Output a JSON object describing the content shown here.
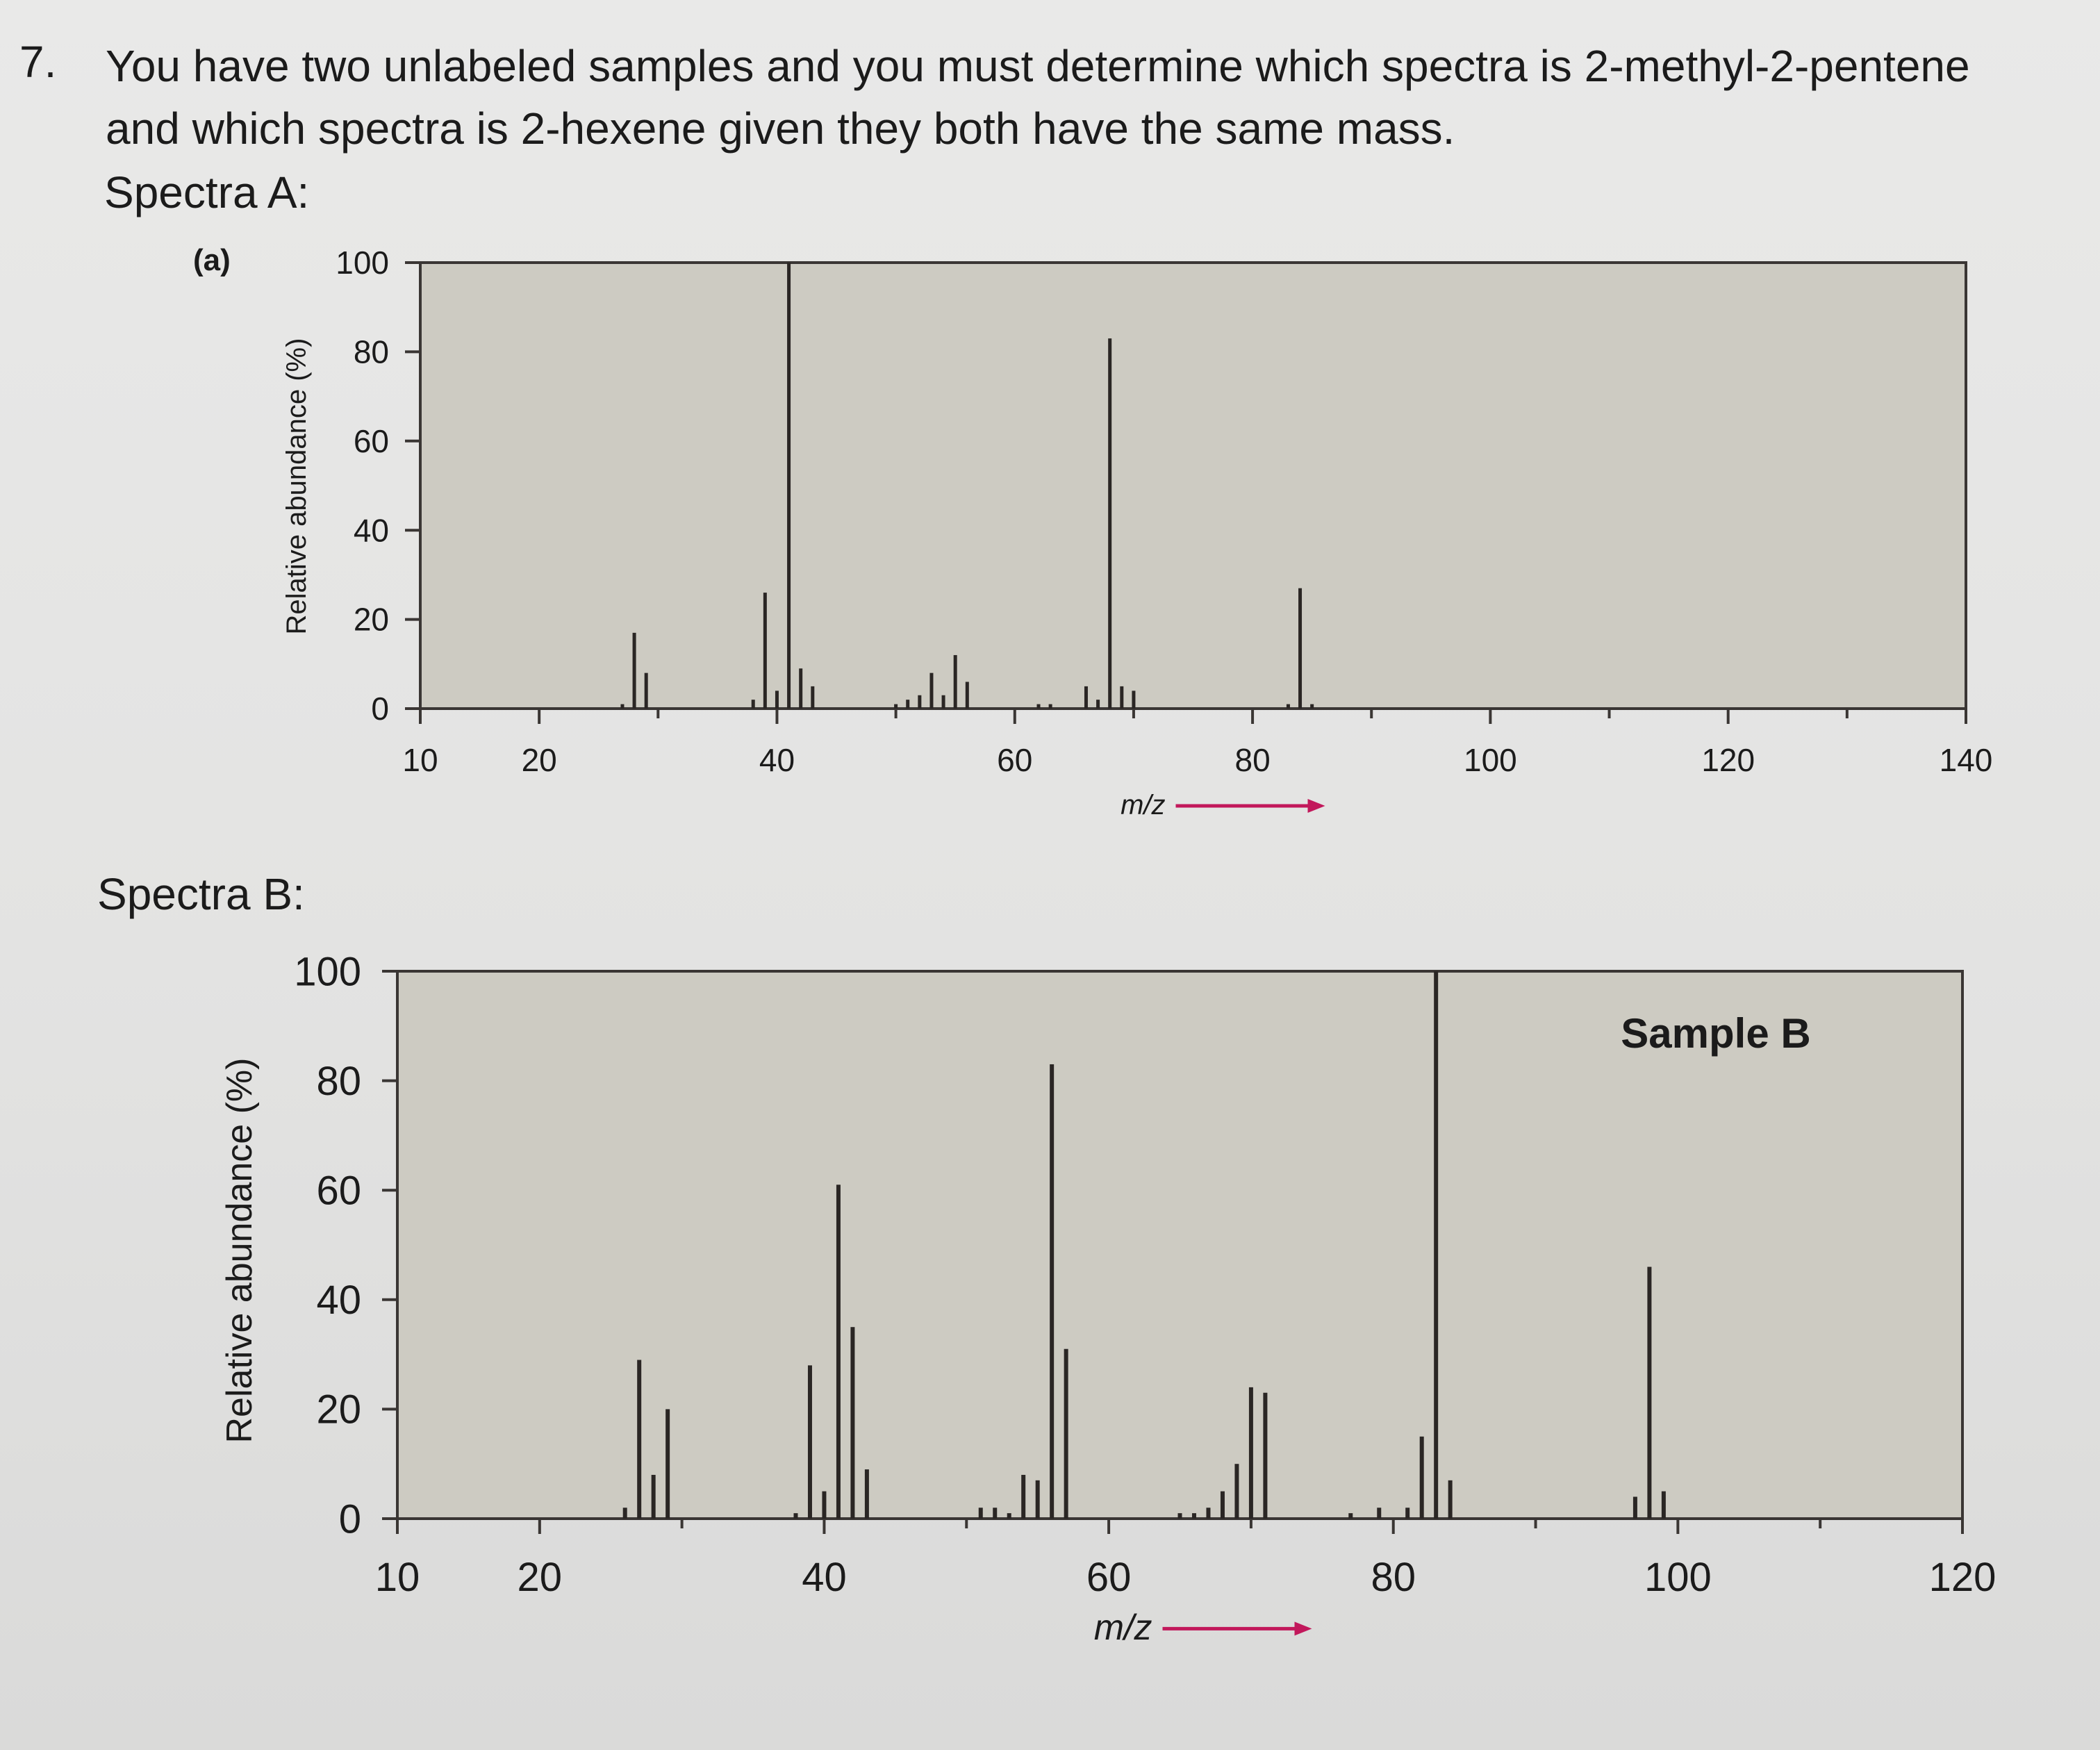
{
  "question": {
    "number": "7.",
    "text": "You have two unlabeled samples and you must determine which spectra is 2-methyl-2-pentene and which spectra is 2-hexene given they both have the same mass."
  },
  "spectra_a": {
    "title": "Spectra A:",
    "panel_label": "(a)"
  },
  "spectra_b": {
    "title": "Spectra B:"
  },
  "colors": {
    "plot_bg": "#cdcbc2",
    "bar": "#2a2624",
    "arrow": "#c2185b"
  },
  "chart_data": [
    {
      "type": "bar",
      "ylabel": "Relative abundance (%)",
      "xlabel": "m/z",
      "xlim": [
        10,
        140
      ],
      "ylim": [
        0,
        100
      ],
      "xticks": [
        10,
        20,
        40,
        60,
        80,
        100,
        120,
        140
      ],
      "yticks": [
        0,
        20,
        40,
        60,
        80,
        100
      ],
      "grid": false,
      "x": [
        27,
        28,
        29,
        38,
        39,
        40,
        41,
        42,
        43,
        50,
        51,
        52,
        53,
        54,
        55,
        56,
        62,
        63,
        66,
        67,
        68,
        69,
        70,
        83,
        84,
        85
      ],
      "values": [
        1,
        17,
        8,
        2,
        26,
        4,
        100,
        9,
        5,
        1,
        2,
        3,
        8,
        3,
        12,
        6,
        1,
        1,
        5,
        2,
        83,
        5,
        4,
        1,
        27,
        1
      ]
    },
    {
      "type": "bar",
      "label": "Sample B",
      "ylabel": "Relative abundance (%)",
      "xlabel": "m/z",
      "xlim": [
        10,
        120
      ],
      "ylim": [
        0,
        100
      ],
      "xticks": [
        10,
        20,
        40,
        60,
        80,
        100,
        120
      ],
      "yticks": [
        0,
        20,
        40,
        60,
        80,
        100
      ],
      "grid": false,
      "x": [
        26,
        27,
        28,
        29,
        38,
        39,
        40,
        41,
        42,
        43,
        51,
        52,
        53,
        54,
        55,
        56,
        57,
        65,
        66,
        67,
        68,
        69,
        70,
        71,
        77,
        79,
        81,
        82,
        83,
        84,
        97,
        98,
        99
      ],
      "values": [
        2,
        29,
        8,
        20,
        1,
        28,
        5,
        61,
        35,
        9,
        2,
        2,
        1,
        8,
        7,
        83,
        31,
        1,
        1,
        2,
        5,
        10,
        24,
        23,
        1,
        2,
        2,
        15,
        100,
        7,
        4,
        46,
        5
      ]
    }
  ]
}
